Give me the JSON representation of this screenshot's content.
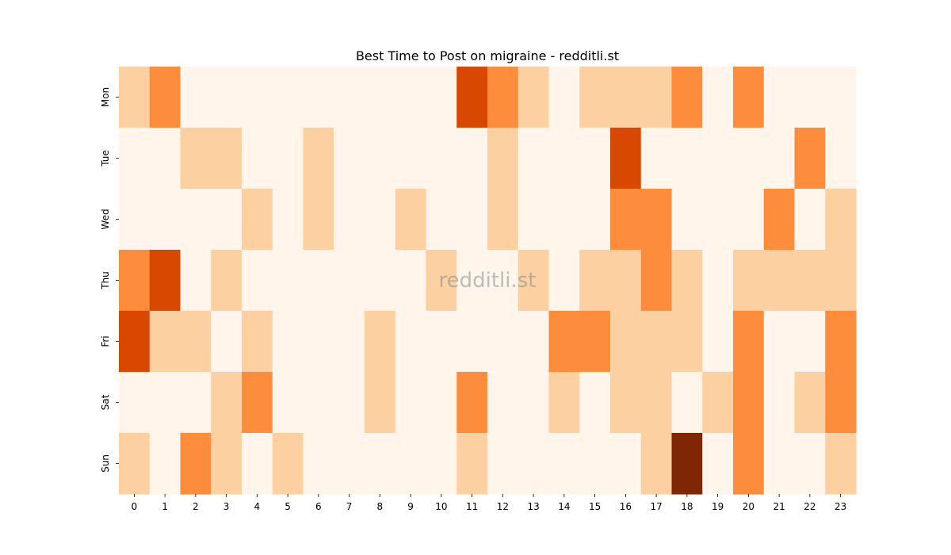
{
  "chart_data": {
    "type": "heatmap",
    "title": "Best Time to Post on migraine - redditli.st",
    "watermark": "redditli.st",
    "xlabel": "",
    "ylabel": "",
    "x": [
      "0",
      "1",
      "2",
      "3",
      "4",
      "5",
      "6",
      "7",
      "8",
      "9",
      "10",
      "11",
      "12",
      "13",
      "14",
      "15",
      "16",
      "17",
      "18",
      "19",
      "20",
      "21",
      "22",
      "23"
    ],
    "y": [
      "Mon",
      "Tue",
      "Wed",
      "Thu",
      "Fri",
      "Sat",
      "Sun"
    ],
    "values": [
      [
        1,
        2,
        0,
        0,
        0,
        0,
        0,
        0,
        0,
        0,
        0,
        3,
        2,
        1,
        0,
        1,
        1,
        1,
        2,
        0,
        2,
        0,
        0,
        0
      ],
      [
        0,
        0,
        1,
        1,
        0,
        0,
        1,
        0,
        0,
        0,
        0,
        0,
        1,
        0,
        0,
        0,
        3,
        0,
        0,
        0,
        0,
        0,
        2,
        0
      ],
      [
        0,
        0,
        0,
        0,
        1,
        0,
        1,
        0,
        0,
        1,
        0,
        0,
        1,
        0,
        0,
        0,
        2,
        2,
        0,
        0,
        0,
        2,
        0,
        1
      ],
      [
        2,
        3,
        0,
        1,
        0,
        0,
        0,
        0,
        0,
        0,
        1,
        0,
        0,
        1,
        0,
        1,
        1,
        2,
        1,
        0,
        1,
        1,
        1,
        1
      ],
      [
        3,
        1,
        1,
        0,
        1,
        0,
        0,
        0,
        1,
        0,
        0,
        0,
        0,
        0,
        2,
        2,
        1,
        1,
        1,
        0,
        2,
        0,
        0,
        2
      ],
      [
        0,
        0,
        0,
        1,
        2,
        0,
        0,
        0,
        1,
        0,
        0,
        2,
        0,
        0,
        1,
        0,
        1,
        1,
        0,
        1,
        2,
        0,
        1,
        2
      ],
      [
        1,
        0,
        2,
        1,
        0,
        1,
        0,
        0,
        0,
        0,
        0,
        1,
        0,
        0,
        0,
        0,
        0,
        1,
        4,
        0,
        2,
        0,
        0,
        1
      ]
    ],
    "colorscale": [
      "#fff5eb",
      "#fdd0a2",
      "#fd8d3c",
      "#d94801",
      "#7f2704"
    ],
    "colorbar": false,
    "grid": false
  }
}
